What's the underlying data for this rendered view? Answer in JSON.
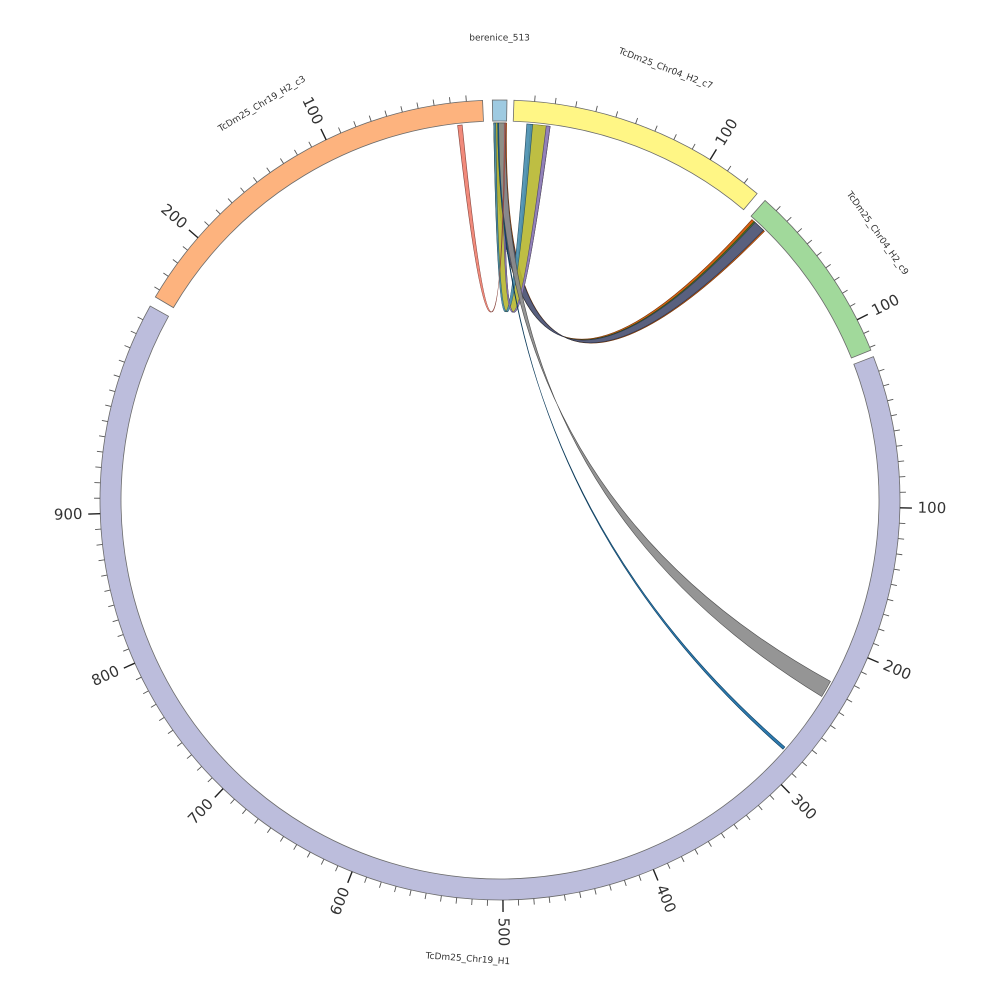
{
  "chart_data": {
    "type": "chord",
    "segments": [
      {
        "name": "berenice_513",
        "length": 14,
        "color": "#9ECAE1",
        "start_angle": -1.1,
        "end_angle": 1.0,
        "tick_labels": []
      },
      {
        "name": "TcDm25_Chr04_H2_c7",
        "length": 128,
        "color": "#FFF685",
        "start_angle": 2.0,
        "end_angle": 40.0,
        "tick_labels": [
          {
            "pos": 100,
            "text": "100"
          }
        ]
      },
      {
        "name": "TcDm25_Chr04_H2_c9",
        "length": 122,
        "color": "#A1D99B",
        "start_angle": 41.5,
        "end_angle": 68.0,
        "tick_labels": [
          {
            "pos": 100,
            "text": "100"
          }
        ]
      },
      {
        "name": "TcDm25_Chr19_H1",
        "length": 1040,
        "color": "#BCBDDC",
        "start_angle": 69.0,
        "end_angle": 299.0,
        "tick_labels": [
          {
            "pos": 100,
            "text": "100"
          },
          {
            "pos": 200,
            "text": "200"
          },
          {
            "pos": 300,
            "text": "300"
          },
          {
            "pos": 400,
            "text": "400"
          },
          {
            "pos": 500,
            "text": "500"
          },
          {
            "pos": 600,
            "text": "600"
          },
          {
            "pos": 700,
            "text": "700"
          },
          {
            "pos": 800,
            "text": "800"
          },
          {
            "pos": 900,
            "text": "900"
          }
        ]
      },
      {
        "name": "TcDm25_Chr19_H2_c3",
        "length": 245,
        "color": "#FDB37E",
        "start_angle": 300.5,
        "end_angle": 357.5,
        "reverse": true,
        "tick_labels": [
          {
            "pos": 100,
            "text": "100"
          },
          {
            "pos": 200,
            "text": "200"
          }
        ]
      }
    ],
    "links": [
      {
        "from": [
          "berenice_513",
          1,
          14
        ],
        "to": [
          "TcDm25_Chr04_H2_c9",
          2,
          14
        ],
        "color": "#D35400"
      },
      {
        "from": [
          "berenice_513",
          1,
          13
        ],
        "to": [
          "TcDm25_Chr04_H2_c9",
          4,
          13
        ],
        "color": "#3A7D2C"
      },
      {
        "from": [
          "berenice_513",
          1,
          13
        ],
        "to": [
          "TcDm25_Chr04_H2_c9",
          5,
          13
        ],
        "color": "#5B5D86"
      },
      {
        "from": [
          "berenice_513",
          1,
          13
        ],
        "to": [
          "TcDm25_Chr04_H2_c7",
          9,
          19
        ],
        "color": "#B8B833"
      },
      {
        "from": [
          "berenice_513",
          1,
          3
        ],
        "to": [
          "TcDm25_Chr04_H2_c7",
          7,
          10
        ],
        "color": "#4A8FB0"
      },
      {
        "from": [
          "berenice_513",
          11,
          13
        ],
        "to": [
          "TcDm25_Chr04_H2_c7",
          17,
          19
        ],
        "color": "#8E7CC3"
      },
      {
        "from": [
          "berenice_513",
          5,
          13
        ],
        "to": [
          "TcDm25_Chr19_H1",
          225,
          237
        ],
        "color": "#8C8C8C"
      },
      {
        "from": [
          "berenice_513",
          5,
          6
        ],
        "to": [
          "TcDm25_Chr19_H1",
          280,
          282
        ],
        "color": "#1B6FA8"
      },
      {
        "from": [
          "berenice_513",
          12,
          13
        ],
        "to": [
          "TcDm25_Chr19_H2_c3",
          14,
          17
        ],
        "color": "#F08070"
      }
    ]
  }
}
